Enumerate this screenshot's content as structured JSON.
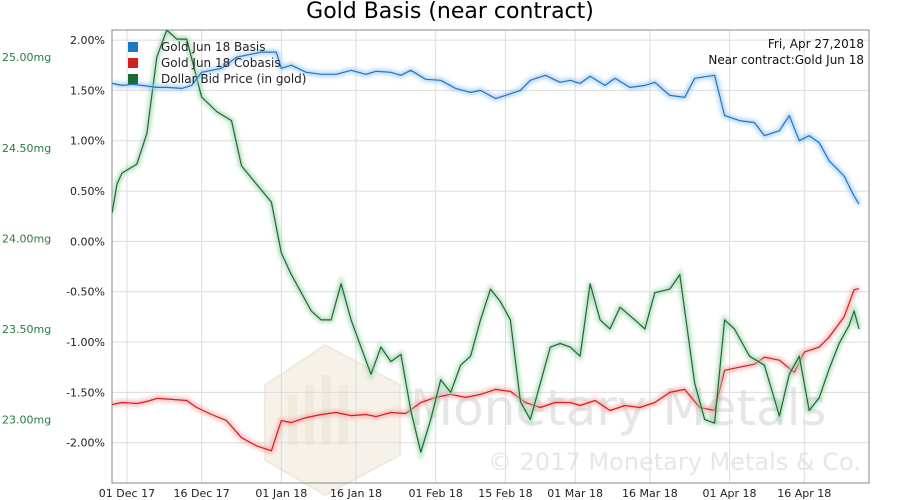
{
  "chart_data": {
    "type": "line",
    "title": "Gold Basis (near contract)",
    "info": [
      "Fri, Apr 27,2018",
      "Near contract:Gold Jun 18"
    ],
    "watermark": {
      "brand": "Monetary Metals",
      "copyright": "© 2017 Monetary Metals & Co."
    },
    "x_range": [
      "2017-11-28",
      "2018-04-29"
    ],
    "x_ticks": [
      {
        "date": "2017-12-01",
        "label": "01 Dec 17"
      },
      {
        "date": "2017-12-16",
        "label": "16 Dec 17"
      },
      {
        "date": "2018-01-01",
        "label": "01 Jan 18"
      },
      {
        "date": "2018-01-16",
        "label": "16 Jan 18"
      },
      {
        "date": "2018-02-01",
        "label": "01 Feb 18"
      },
      {
        "date": "2018-02-15",
        "label": "15 Feb 18"
      },
      {
        "date": "2018-03-01",
        "label": "01 Mar 18"
      },
      {
        "date": "2018-03-16",
        "label": "16 Mar 18"
      },
      {
        "date": "2018-04-01",
        "label": "01 Apr 18"
      },
      {
        "date": "2018-04-16",
        "label": "16 Apr 18"
      }
    ],
    "y_right": {
      "range": [
        -2.4,
        2.1
      ],
      "ticks": [
        2.0,
        1.5,
        1.0,
        0.5,
        0.0,
        -0.5,
        -1.0,
        -1.5,
        -2.0
      ],
      "labels": [
        "2.00%",
        "1.50%",
        "1.00%",
        "0.50%",
        "0.00%",
        "-0.50%",
        "-1.00%",
        "-1.50%",
        "-2.00%"
      ]
    },
    "y_left": {
      "range": [
        22.65,
        25.15
      ],
      "ticks": [
        25.0,
        24.5,
        24.0,
        23.5,
        23.0
      ],
      "labels": [
        "25.00mg",
        "24.50mg",
        "24.00mg",
        "23.50mg",
        "23.00mg"
      ]
    },
    "grid": true,
    "legend": "top-left",
    "series": [
      {
        "name": "Gold Jun 18 Basis",
        "color": "#1f77c8",
        "axis": "right",
        "points": [
          [
            "2017-11-28",
            1.57
          ],
          [
            "2017-11-30",
            1.55
          ],
          [
            "2017-12-02",
            1.56
          ],
          [
            "2017-12-04",
            1.55
          ],
          [
            "2017-12-07",
            1.53
          ],
          [
            "2017-12-09",
            1.53
          ],
          [
            "2017-12-12",
            1.52
          ],
          [
            "2017-12-14",
            1.55
          ],
          [
            "2017-12-16",
            1.68
          ],
          [
            "2017-12-18",
            1.7
          ],
          [
            "2017-12-20",
            1.72
          ],
          [
            "2017-12-23",
            1.83
          ],
          [
            "2017-12-28",
            1.88
          ],
          [
            "2017-12-31",
            1.88
          ],
          [
            "2018-01-01",
            1.72
          ],
          [
            "2018-01-03",
            1.75
          ],
          [
            "2018-01-06",
            1.68
          ],
          [
            "2018-01-09",
            1.66
          ],
          [
            "2018-01-12",
            1.66
          ],
          [
            "2018-01-15",
            1.7
          ],
          [
            "2018-01-18",
            1.66
          ],
          [
            "2018-01-20",
            1.69
          ],
          [
            "2018-01-23",
            1.68
          ],
          [
            "2018-01-25",
            1.65
          ],
          [
            "2018-01-27",
            1.7
          ],
          [
            "2018-01-30",
            1.61
          ],
          [
            "2018-02-02",
            1.6
          ],
          [
            "2018-02-05",
            1.52
          ],
          [
            "2018-02-08",
            1.48
          ],
          [
            "2018-02-10",
            1.5
          ],
          [
            "2018-02-13",
            1.42
          ],
          [
            "2018-02-15",
            1.45
          ],
          [
            "2018-02-18",
            1.5
          ],
          [
            "2018-02-20",
            1.6
          ],
          [
            "2018-02-23",
            1.65
          ],
          [
            "2018-02-26",
            1.58
          ],
          [
            "2018-02-28",
            1.6
          ],
          [
            "2018-03-02",
            1.57
          ],
          [
            "2018-03-04",
            1.64
          ],
          [
            "2018-03-07",
            1.55
          ],
          [
            "2018-03-09",
            1.62
          ],
          [
            "2018-03-12",
            1.53
          ],
          [
            "2018-03-15",
            1.55
          ],
          [
            "2018-03-17",
            1.58
          ],
          [
            "2018-03-20",
            1.45
          ],
          [
            "2018-03-23",
            1.43
          ],
          [
            "2018-03-25",
            1.62
          ],
          [
            "2018-03-29",
            1.65
          ],
          [
            "2018-03-31",
            1.25
          ],
          [
            "2018-04-03",
            1.2
          ],
          [
            "2018-04-06",
            1.18
          ],
          [
            "2018-04-08",
            1.05
          ],
          [
            "2018-04-11",
            1.1
          ],
          [
            "2018-04-13",
            1.25
          ],
          [
            "2018-04-15",
            1.0
          ],
          [
            "2018-04-17",
            1.05
          ],
          [
            "2018-04-19",
            0.98
          ],
          [
            "2018-04-21",
            0.8
          ],
          [
            "2018-04-24",
            0.65
          ],
          [
            "2018-04-26",
            0.45
          ],
          [
            "2018-04-27",
            0.37
          ]
        ]
      },
      {
        "name": "Gold Jun 18 Cobasis",
        "color": "#d41f1f",
        "axis": "right",
        "points": [
          [
            "2017-11-28",
            -1.62
          ],
          [
            "2017-11-30",
            -1.6
          ],
          [
            "2017-12-03",
            -1.61
          ],
          [
            "2017-12-05",
            -1.59
          ],
          [
            "2017-12-07",
            -1.56
          ],
          [
            "2017-12-10",
            -1.57
          ],
          [
            "2017-12-13",
            -1.58
          ],
          [
            "2017-12-15",
            -1.65
          ],
          [
            "2017-12-18",
            -1.72
          ],
          [
            "2017-12-21",
            -1.78
          ],
          [
            "2017-12-24",
            -1.95
          ],
          [
            "2017-12-27",
            -2.03
          ],
          [
            "2017-12-30",
            -2.08
          ],
          [
            "2018-01-01",
            -1.78
          ],
          [
            "2018-01-03",
            -1.8
          ],
          [
            "2018-01-06",
            -1.75
          ],
          [
            "2018-01-09",
            -1.72
          ],
          [
            "2018-01-12",
            -1.7
          ],
          [
            "2018-01-15",
            -1.73
          ],
          [
            "2018-01-18",
            -1.72
          ],
          [
            "2018-01-20",
            -1.74
          ],
          [
            "2018-01-23",
            -1.7
          ],
          [
            "2018-01-26",
            -1.71
          ],
          [
            "2018-01-29",
            -1.6
          ],
          [
            "2018-02-01",
            -1.55
          ],
          [
            "2018-02-04",
            -1.52
          ],
          [
            "2018-02-07",
            -1.55
          ],
          [
            "2018-02-10",
            -1.52
          ],
          [
            "2018-02-13",
            -1.47
          ],
          [
            "2018-02-16",
            -1.49
          ],
          [
            "2018-02-19",
            -1.6
          ],
          [
            "2018-02-22",
            -1.65
          ],
          [
            "2018-02-25",
            -1.6
          ],
          [
            "2018-02-28",
            -1.6
          ],
          [
            "2018-03-02",
            -1.63
          ],
          [
            "2018-03-05",
            -1.58
          ],
          [
            "2018-03-08",
            -1.68
          ],
          [
            "2018-03-11",
            -1.63
          ],
          [
            "2018-03-14",
            -1.65
          ],
          [
            "2018-03-17",
            -1.6
          ],
          [
            "2018-03-20",
            -1.5
          ],
          [
            "2018-03-23",
            -1.47
          ],
          [
            "2018-03-26",
            -1.65
          ],
          [
            "2018-03-29",
            -1.68
          ],
          [
            "2018-03-31",
            -1.28
          ],
          [
            "2018-04-03",
            -1.25
          ],
          [
            "2018-04-06",
            -1.22
          ],
          [
            "2018-04-08",
            -1.15
          ],
          [
            "2018-04-11",
            -1.18
          ],
          [
            "2018-04-14",
            -1.3
          ],
          [
            "2018-04-16",
            -1.1
          ],
          [
            "2018-04-19",
            -1.05
          ],
          [
            "2018-04-21",
            -0.95
          ],
          [
            "2018-04-24",
            -0.75
          ],
          [
            "2018-04-26",
            -0.48
          ],
          [
            "2018-04-27",
            -0.47
          ]
        ]
      },
      {
        "name": "Dollar Bid Price (in gold)",
        "color": "#1d6a35",
        "axis": "left",
        "points": [
          [
            "2017-11-28",
            24.14
          ],
          [
            "2017-11-29",
            24.3
          ],
          [
            "2017-11-30",
            24.36
          ],
          [
            "2017-12-03",
            24.41
          ],
          [
            "2017-12-05",
            24.58
          ],
          [
            "2017-12-07",
            25.0
          ],
          [
            "2017-12-09",
            25.15
          ],
          [
            "2017-12-11",
            25.1
          ],
          [
            "2017-12-13",
            25.1
          ],
          [
            "2017-12-16",
            24.78
          ],
          [
            "2017-12-19",
            24.7
          ],
          [
            "2017-12-22",
            24.65
          ],
          [
            "2017-12-24",
            24.4
          ],
          [
            "2017-12-27",
            24.3
          ],
          [
            "2017-12-30",
            24.2
          ],
          [
            "2018-01-01",
            23.92
          ],
          [
            "2018-01-03",
            23.8
          ],
          [
            "2018-01-05",
            23.7
          ],
          [
            "2018-01-07",
            23.6
          ],
          [
            "2018-01-09",
            23.55
          ],
          [
            "2018-01-11",
            23.55
          ],
          [
            "2018-01-13",
            23.75
          ],
          [
            "2018-01-15",
            23.55
          ],
          [
            "2018-01-17",
            23.4
          ],
          [
            "2018-01-19",
            23.25
          ],
          [
            "2018-01-21",
            23.4
          ],
          [
            "2018-01-23",
            23.32
          ],
          [
            "2018-01-25",
            23.36
          ],
          [
            "2018-01-27",
            23.05
          ],
          [
            "2018-01-29",
            22.82
          ],
          [
            "2018-01-31",
            23.0
          ],
          [
            "2018-02-02",
            23.22
          ],
          [
            "2018-02-04",
            23.15
          ],
          [
            "2018-02-06",
            23.3
          ],
          [
            "2018-02-08",
            23.35
          ],
          [
            "2018-02-10",
            23.55
          ],
          [
            "2018-02-12",
            23.72
          ],
          [
            "2018-02-14",
            23.65
          ],
          [
            "2018-02-16",
            23.55
          ],
          [
            "2018-02-18",
            23.1
          ],
          [
            "2018-02-20",
            23.0
          ],
          [
            "2018-02-22",
            23.2
          ],
          [
            "2018-02-24",
            23.4
          ],
          [
            "2018-02-26",
            23.42
          ],
          [
            "2018-02-28",
            23.4
          ],
          [
            "2018-03-02",
            23.35
          ],
          [
            "2018-03-04",
            23.75
          ],
          [
            "2018-03-06",
            23.55
          ],
          [
            "2018-03-08",
            23.5
          ],
          [
            "2018-03-10",
            23.62
          ],
          [
            "2018-03-13",
            23.55
          ],
          [
            "2018-03-15",
            23.5
          ],
          [
            "2018-03-17",
            23.7
          ],
          [
            "2018-03-20",
            23.72
          ],
          [
            "2018-03-22",
            23.8
          ],
          [
            "2018-03-25",
            23.2
          ],
          [
            "2018-03-27",
            23.0
          ],
          [
            "2018-03-29",
            22.98
          ],
          [
            "2018-03-31",
            23.55
          ],
          [
            "2018-04-02",
            23.5
          ],
          [
            "2018-04-05",
            23.35
          ],
          [
            "2018-04-08",
            23.3
          ],
          [
            "2018-04-11",
            23.02
          ],
          [
            "2018-04-13",
            23.25
          ],
          [
            "2018-04-15",
            23.35
          ],
          [
            "2018-04-17",
            23.05
          ],
          [
            "2018-04-19",
            23.12
          ],
          [
            "2018-04-21",
            23.28
          ],
          [
            "2018-04-23",
            23.42
          ],
          [
            "2018-04-25",
            23.52
          ],
          [
            "2018-04-26",
            23.6
          ],
          [
            "2018-04-27",
            23.5
          ]
        ]
      }
    ]
  }
}
